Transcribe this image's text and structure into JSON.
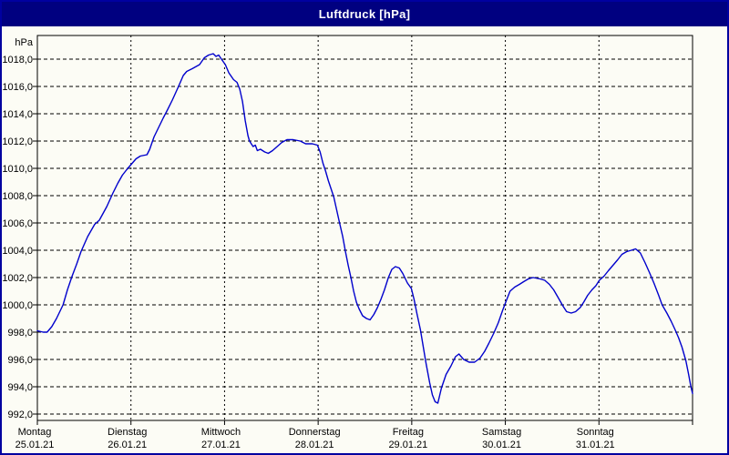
{
  "window": {
    "title": "Luftdruck [hPa]"
  },
  "colors": {
    "titlebar_bg": "#000080",
    "titlebar_text": "#ffffff",
    "window_border": "#0000a0",
    "background": "#fcfcf5",
    "grid": "#000000",
    "line": "#0000cc",
    "text": "#000000"
  },
  "chart_data": {
    "type": "line",
    "title": "Luftdruck [hPa]",
    "unit_label": "hPa",
    "grid": "dashed",
    "legend": "none",
    "ylim": [
      991.5,
      1019.8
    ],
    "xlim_hours": [
      0,
      168
    ],
    "y_tick_values": [
      1018,
      1016,
      1014,
      1012,
      1010,
      1008,
      1006,
      1004,
      1002,
      1000,
      998,
      996,
      994,
      992
    ],
    "y_tick_labels": [
      "1018,0",
      "1016,0",
      "1014,0",
      "1012,0",
      "1010,0",
      "1008,0",
      "1006,0",
      "1004,0",
      "1002,0",
      "1000,0",
      "998,0",
      "996,0",
      "994,0",
      "992,0"
    ],
    "x_days": [
      {
        "name": "Montag",
        "date": "25.01.21"
      },
      {
        "name": "Dienstag",
        "date": "26.01.21"
      },
      {
        "name": "Mittwoch",
        "date": "27.01.21"
      },
      {
        "name": "Donnerstag",
        "date": "28.01.21"
      },
      {
        "name": "Freitag",
        "date": "29.01.21"
      },
      {
        "name": "Samstag",
        "date": "30.01.21"
      },
      {
        "name": "Sonntag",
        "date": "31.01.21"
      }
    ],
    "series": [
      {
        "name": "Luftdruck",
        "unit": "hPa",
        "points": [
          [
            0,
            998.1
          ],
          [
            1.5,
            998
          ],
          [
            2.5,
            998
          ],
          [
            3.7,
            998.4
          ],
          [
            4.9,
            999
          ],
          [
            6.6,
            1000
          ],
          [
            7.7,
            1001.1
          ],
          [
            8.9,
            1002.1
          ],
          [
            10.1,
            1003
          ],
          [
            11.2,
            1003.9
          ],
          [
            12.9,
            1005
          ],
          [
            14.7,
            1005.9
          ],
          [
            15.9,
            1006.2
          ],
          [
            17.8,
            1007.2
          ],
          [
            19.4,
            1008.2
          ],
          [
            20.6,
            1008.9
          ],
          [
            21.8,
            1009.5
          ],
          [
            22.9,
            1009.9
          ],
          [
            24.1,
            1010.3
          ],
          [
            25.3,
            1010.7
          ],
          [
            26.4,
            1010.9
          ],
          [
            28.1,
            1011
          ],
          [
            28.8,
            1011.4
          ],
          [
            29.9,
            1012.3
          ],
          [
            31.1,
            1013
          ],
          [
            32.3,
            1013.7
          ],
          [
            33.4,
            1014.3
          ],
          [
            34.6,
            1015
          ],
          [
            36.2,
            1016
          ],
          [
            37.4,
            1016.8
          ],
          [
            38.3,
            1017.1
          ],
          [
            39.7,
            1017.3
          ],
          [
            41.6,
            1017.6
          ],
          [
            42.8,
            1018.1
          ],
          [
            43.9,
            1018.3
          ],
          [
            45.1,
            1018.4
          ],
          [
            45.8,
            1018.2
          ],
          [
            46.5,
            1018.3
          ],
          [
            47.2,
            1018
          ],
          [
            48.2,
            1017.6
          ],
          [
            49.1,
            1017
          ],
          [
            50.3,
            1016.5
          ],
          [
            51.2,
            1016.3
          ],
          [
            51.9,
            1015.8
          ],
          [
            52.6,
            1014.9
          ],
          [
            53.3,
            1013.5
          ],
          [
            54,
            1012.4
          ],
          [
            54.4,
            1012
          ],
          [
            55.3,
            1011.6
          ],
          [
            55.9,
            1011.7
          ],
          [
            56.4,
            1011.3
          ],
          [
            57.2,
            1011.4
          ],
          [
            58.3,
            1011.2
          ],
          [
            59.2,
            1011.1
          ],
          [
            60.3,
            1011.3
          ],
          [
            61.5,
            1011.6
          ],
          [
            62.7,
            1011.9
          ],
          [
            64,
            1012.1
          ],
          [
            65.6,
            1012.1
          ],
          [
            67.4,
            1012
          ],
          [
            68.8,
            1011.8
          ],
          [
            70.5,
            1011.8
          ],
          [
            71.8,
            1011.7
          ],
          [
            72.5,
            1011.2
          ],
          [
            73.2,
            1010.4
          ],
          [
            73.9,
            1009.8
          ],
          [
            74.6,
            1009.1
          ],
          [
            75.3,
            1008.5
          ],
          [
            76,
            1007.9
          ],
          [
            76.7,
            1007
          ],
          [
            77.4,
            1006.1
          ],
          [
            78.3,
            1005
          ],
          [
            79,
            1003.9
          ],
          [
            79.7,
            1002.9
          ],
          [
            80.4,
            1002
          ],
          [
            81.1,
            1001
          ],
          [
            81.8,
            1000.2
          ],
          [
            82.5,
            999.7
          ],
          [
            83.4,
            999.2
          ],
          [
            84.4,
            999
          ],
          [
            85.3,
            998.9
          ],
          [
            86.3,
            999.3
          ],
          [
            87.2,
            999.8
          ],
          [
            88.1,
            1000.4
          ],
          [
            89,
            1001.1
          ],
          [
            90,
            1002
          ],
          [
            90.9,
            1002.6
          ],
          [
            91.8,
            1002.8
          ],
          [
            92.8,
            1002.7
          ],
          [
            93.7,
            1002.3
          ],
          [
            94.9,
            1001.6
          ],
          [
            95.9,
            1001.2
          ],
          [
            96.6,
            1000.4
          ],
          [
            97.3,
            999.4
          ],
          [
            98.2,
            998.2
          ],
          [
            98.9,
            997
          ],
          [
            99.6,
            995.8
          ],
          [
            100.6,
            994.3
          ],
          [
            101.3,
            993.4
          ],
          [
            102,
            992.9
          ],
          [
            102.7,
            992.8
          ],
          [
            103.6,
            993.9
          ],
          [
            104.8,
            994.9
          ],
          [
            106,
            995.5
          ],
          [
            107.2,
            996.2
          ],
          [
            108.1,
            996.4
          ],
          [
            109.3,
            996
          ],
          [
            110.7,
            995.8
          ],
          [
            112.1,
            995.8
          ],
          [
            113.5,
            996.1
          ],
          [
            114.7,
            996.6
          ],
          [
            115.8,
            997.2
          ],
          [
            117,
            997.9
          ],
          [
            118.2,
            998.7
          ],
          [
            119.3,
            999.6
          ],
          [
            120.1,
            1000.2
          ],
          [
            121.2,
            1001
          ],
          [
            122.4,
            1001.3
          ],
          [
            123.6,
            1001.5
          ],
          [
            124.7,
            1001.7
          ],
          [
            125.9,
            1001.9
          ],
          [
            127.1,
            1002
          ],
          [
            128.9,
            1001.9
          ],
          [
            130.1,
            1001.8
          ],
          [
            131.3,
            1001.5
          ],
          [
            132.4,
            1001.1
          ],
          [
            133.6,
            1000.5
          ],
          [
            134.8,
            999.9
          ],
          [
            135.7,
            999.5
          ],
          [
            136.9,
            999.4
          ],
          [
            138,
            999.5
          ],
          [
            139.2,
            999.8
          ],
          [
            140.1,
            1000.2
          ],
          [
            141.1,
            1000.7
          ],
          [
            142.2,
            1001.1
          ],
          [
            143.2,
            1001.4
          ],
          [
            144.1,
            1001.8
          ],
          [
            145.3,
            1002.1
          ],
          [
            146.4,
            1002.5
          ],
          [
            147.6,
            1002.9
          ],
          [
            148.8,
            1003.3
          ],
          [
            149.9,
            1003.7
          ],
          [
            151.1,
            1003.9
          ],
          [
            152.3,
            1004
          ],
          [
            153.4,
            1004.1
          ],
          [
            154.6,
            1003.8
          ],
          [
            155.8,
            1003.1
          ],
          [
            156.9,
            1002.4
          ],
          [
            158.1,
            1001.6
          ],
          [
            159.3,
            1000.7
          ],
          [
            160.2,
            1000
          ],
          [
            161.4,
            999.4
          ],
          [
            162.5,
            998.8
          ],
          [
            163.5,
            998.2
          ],
          [
            164.4,
            997.6
          ],
          [
            165.3,
            996.9
          ],
          [
            166.3,
            995.9
          ],
          [
            167,
            994.9
          ],
          [
            167.5,
            994.1
          ],
          [
            168,
            993.5
          ]
        ]
      }
    ]
  }
}
